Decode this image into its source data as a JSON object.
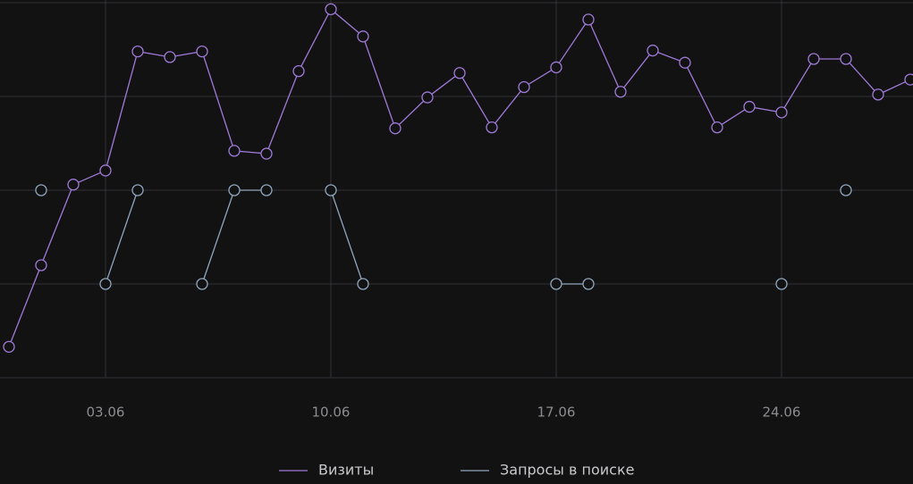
{
  "chart_data": {
    "type": "line",
    "categories": [
      null,
      null,
      null,
      "03.06",
      null,
      null,
      null,
      null,
      null,
      null,
      "10.06",
      null,
      null,
      null,
      null,
      null,
      null,
      "17.06",
      null,
      null,
      null,
      null,
      null,
      null,
      "24.06",
      null,
      null,
      null,
      null
    ],
    "series": [
      {
        "name": "Визиты",
        "color": "#a07ad8",
        "values": [
          0.33,
          1.2,
          2.06,
          2.21,
          3.48,
          3.42,
          3.48,
          2.42,
          2.39,
          3.27,
          3.93,
          3.64,
          2.66,
          2.99,
          3.25,
          2.67,
          3.1,
          3.31,
          3.82,
          3.05,
          3.49,
          3.36,
          2.67,
          2.89,
          2.83,
          3.4,
          3.4,
          3.02,
          3.18
        ]
      },
      {
        "name": "Запросы в поиске",
        "color": "#8fa6bf",
        "values": [
          null,
          2,
          null,
          1,
          2,
          null,
          1,
          2,
          2,
          null,
          2,
          1,
          null,
          null,
          null,
          null,
          null,
          1,
          1,
          null,
          null,
          null,
          null,
          null,
          1,
          null,
          2,
          null,
          null
        ]
      }
    ],
    "ylim": [
      0,
      4
    ],
    "yticks": [
      0,
      1,
      2,
      3,
      4
    ],
    "grid": true,
    "legend": "bottom"
  }
}
